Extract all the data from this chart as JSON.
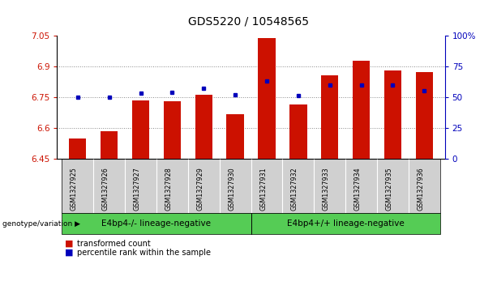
{
  "title": "GDS5220 / 10548565",
  "samples": [
    "GSM1327925",
    "GSM1327926",
    "GSM1327927",
    "GSM1327928",
    "GSM1327929",
    "GSM1327930",
    "GSM1327931",
    "GSM1327932",
    "GSM1327933",
    "GSM1327934",
    "GSM1327935",
    "GSM1327936"
  ],
  "transformed_count": [
    6.548,
    6.583,
    6.735,
    6.728,
    6.762,
    6.668,
    7.037,
    6.715,
    6.855,
    6.928,
    6.878,
    6.873
  ],
  "percentile_rank": [
    50,
    50,
    53,
    54,
    57,
    52,
    63,
    51,
    60,
    60,
    60,
    55
  ],
  "ylim_left": [
    6.45,
    7.05
  ],
  "ylim_right": [
    0,
    100
  ],
  "yticks_left": [
    6.45,
    6.6,
    6.75,
    6.9,
    7.05
  ],
  "ytick_left_labels": [
    "6.45",
    "6.6",
    "6.75",
    "6.9",
    "7.05"
  ],
  "yticks_right": [
    0,
    25,
    50,
    75,
    100
  ],
  "ytick_right_labels": [
    "0",
    "25",
    "50",
    "75",
    "100%"
  ],
  "grid_vals": [
    6.6,
    6.75,
    6.9
  ],
  "bar_color": "#cc1100",
  "dot_color": "#0000bb",
  "group1_label": "E4bp4-/- lineage-negative",
  "group2_label": "E4bp4+/+ lineage-negative",
  "group_color": "#55cc55",
  "group_label_prefix": "genotype/variation",
  "legend_bar_label": "transformed count",
  "legend_dot_label": "percentile rank within the sample",
  "title_fontsize": 10,
  "axis_color_left": "#cc1100",
  "axis_color_right": "#0000bb",
  "bar_bottom": 6.45,
  "bar_width": 0.55,
  "xlim": [
    -0.65,
    11.65
  ]
}
